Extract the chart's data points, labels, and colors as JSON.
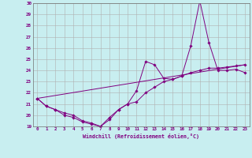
{
  "xlabel": "Windchill (Refroidissement éolien,°C)",
  "bg_color": "#c8eef0",
  "line_color": "#800080",
  "grid_color": "#b0b0b0",
  "ylim": [
    19,
    30
  ],
  "xlim": [
    -0.5,
    23.5
  ],
  "yticks": [
    19,
    20,
    21,
    22,
    23,
    24,
    25,
    26,
    27,
    28,
    29,
    30
  ],
  "xticks": [
    0,
    1,
    2,
    3,
    4,
    5,
    6,
    7,
    8,
    9,
    10,
    11,
    12,
    13,
    14,
    15,
    16,
    17,
    18,
    19,
    20,
    21,
    22,
    23
  ],
  "series": [
    {
      "x": [
        0,
        1,
        2,
        3,
        4,
        5,
        6,
        7,
        8,
        9,
        10,
        11,
        12,
        13,
        14,
        15,
        16,
        17,
        18,
        19,
        20,
        21,
        22,
        23
      ],
      "y": [
        21.5,
        20.8,
        20.5,
        20.0,
        19.8,
        19.4,
        19.2,
        19.0,
        19.6,
        20.5,
        21.0,
        22.2,
        24.8,
        24.5,
        23.3,
        23.2,
        23.5,
        26.2,
        30.2,
        26.5,
        24.0,
        24.0,
        24.1,
        23.8
      ]
    },
    {
      "x": [
        0,
        1,
        2,
        3,
        4,
        5,
        6,
        7,
        8,
        9,
        10,
        11,
        12,
        13,
        14,
        15,
        16,
        17,
        18,
        19,
        20,
        21,
        22,
        23
      ],
      "y": [
        21.5,
        20.8,
        20.5,
        20.2,
        20.0,
        19.5,
        19.3,
        19.0,
        19.8,
        20.5,
        21.0,
        21.2,
        22.0,
        22.5,
        23.0,
        23.2,
        23.5,
        23.8,
        24.0,
        24.2,
        24.2,
        24.3,
        24.4,
        24.5
      ]
    },
    {
      "x": [
        0,
        23
      ],
      "y": [
        21.5,
        24.5
      ]
    }
  ]
}
